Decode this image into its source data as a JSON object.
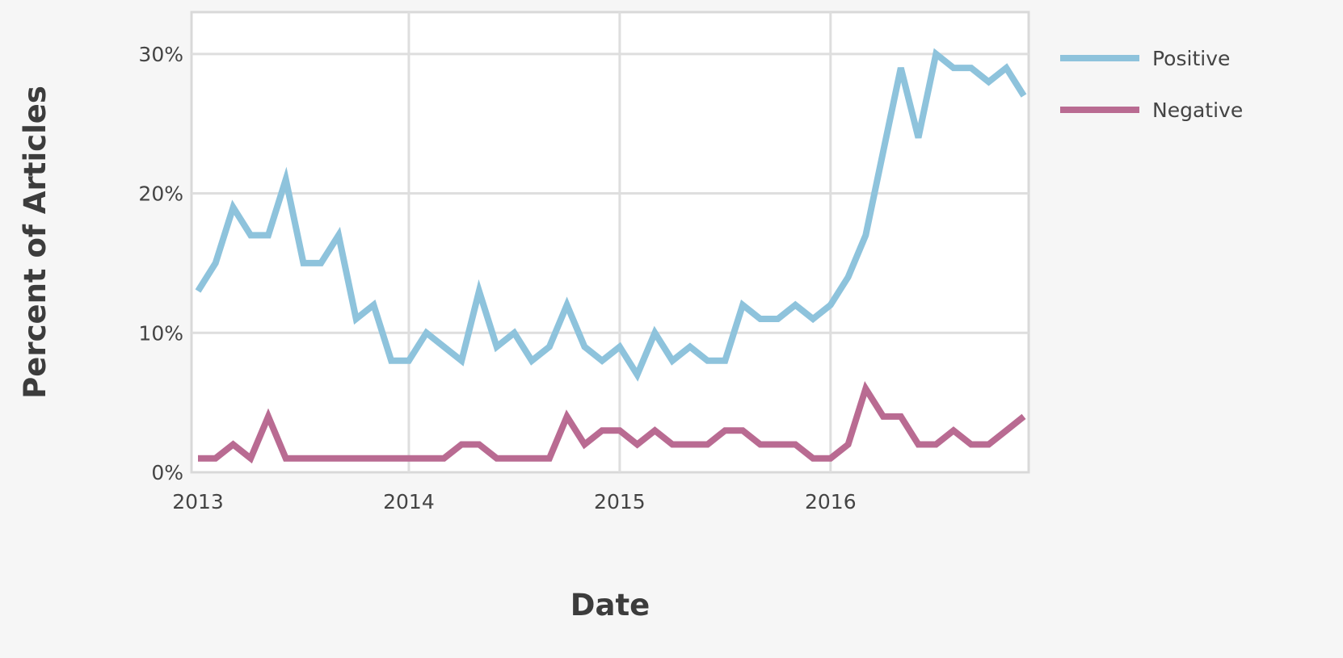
{
  "chart_data": {
    "type": "line",
    "title": "",
    "xlabel": "Date",
    "ylabel": "Percent of Articles",
    "x_tick_labels": [
      "2013",
      "2014",
      "2015",
      "2016"
    ],
    "y_tick_labels": [
      "0%",
      "10%",
      "20%",
      "30%"
    ],
    "y_ticks": [
      0,
      10,
      20,
      30
    ],
    "ylim": [
      0,
      33
    ],
    "xlim": [
      "2013-01",
      "2016-12"
    ],
    "grid": true,
    "legend_position": "outside-top-right",
    "x": [
      "2013-01",
      "2013-02",
      "2013-03",
      "2013-04",
      "2013-05",
      "2013-06",
      "2013-07",
      "2013-08",
      "2013-09",
      "2013-10",
      "2013-11",
      "2013-12",
      "2014-01",
      "2014-02",
      "2014-03",
      "2014-04",
      "2014-05",
      "2014-06",
      "2014-07",
      "2014-08",
      "2014-09",
      "2014-10",
      "2014-11",
      "2014-12",
      "2015-01",
      "2015-02",
      "2015-03",
      "2015-04",
      "2015-05",
      "2015-06",
      "2015-07",
      "2015-08",
      "2015-09",
      "2015-10",
      "2015-11",
      "2015-12",
      "2016-01",
      "2016-02",
      "2016-03",
      "2016-04",
      "2016-05",
      "2016-06",
      "2016-07",
      "2016-08",
      "2016-09",
      "2016-10",
      "2016-11",
      "2016-12"
    ],
    "series": [
      {
        "name": "Positive",
        "color": "#8ec3dc",
        "values": [
          13,
          15,
          19,
          17,
          17,
          21,
          15,
          15,
          17,
          11,
          12,
          8,
          8,
          10,
          9,
          8,
          13,
          9,
          10,
          8,
          9,
          12,
          9,
          8,
          9,
          7,
          10,
          8,
          9,
          8,
          8,
          12,
          11,
          11,
          12,
          11,
          12,
          14,
          17,
          23,
          29,
          24,
          30,
          29,
          29,
          28,
          29,
          27
        ]
      },
      {
        "name": "Negative",
        "color": "#b96b92",
        "values": [
          1,
          1,
          2,
          1,
          4,
          1,
          1,
          1,
          1,
          1,
          1,
          1,
          1,
          1,
          1,
          2,
          2,
          1,
          1,
          1,
          1,
          4,
          2,
          3,
          3,
          2,
          3,
          2,
          2,
          2,
          3,
          3,
          2,
          2,
          2,
          1,
          1,
          2,
          6,
          4,
          4,
          2,
          2,
          3,
          2,
          2,
          3,
          4
        ]
      }
    ]
  }
}
